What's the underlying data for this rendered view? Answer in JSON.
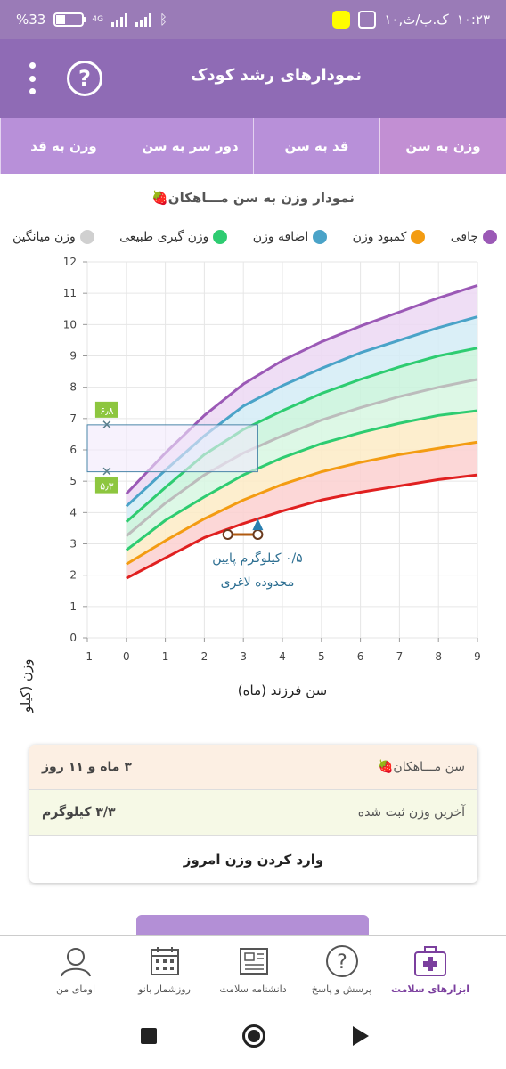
{
  "status_bar": {
    "battery": "%33",
    "network": "4G",
    "date": "۱۰,ک.ب/ث",
    "time": "۱۰:۲۳"
  },
  "app": {
    "title": "نمودارهای رشد کودک",
    "help_label": "?"
  },
  "tabs": [
    {
      "label": "وزن به سن",
      "active": true
    },
    {
      "label": "قد به سن",
      "active": false
    },
    {
      "label": "دور سر به سن",
      "active": false
    },
    {
      "label": "وزن به قد",
      "active": false
    }
  ],
  "chart_data": {
    "type": "area",
    "title": "نمودار وزن به سن مـــاهکان🍓",
    "xlabel": "سن فرزند (ماه)",
    "ylabel": "وزن (کیلوگرم)",
    "xlim": [
      -1,
      9
    ],
    "ylim": [
      0,
      12
    ],
    "x_ticks": [
      "-1",
      "0",
      "1",
      "2",
      "3",
      "4",
      "5",
      "6",
      "7",
      "8",
      "9"
    ],
    "y_ticks": [
      "0",
      "1",
      "2",
      "3",
      "4",
      "5",
      "6",
      "7",
      "8",
      "9",
      "10",
      "11",
      "12"
    ],
    "grid": true,
    "legend_position": "top",
    "x": [
      0,
      1,
      2,
      3,
      4,
      5,
      6,
      7,
      8,
      9
    ],
    "series": [
      {
        "name": "چاقی",
        "color": "#9b59b6",
        "values": [
          4.6,
          5.9,
          7.1,
          8.1,
          8.85,
          9.45,
          9.95,
          10.4,
          10.85,
          11.25
        ]
      },
      {
        "name": "اضافه وزن",
        "color": "#4aa3c8",
        "values": [
          4.2,
          5.35,
          6.45,
          7.4,
          8.05,
          8.6,
          9.1,
          9.5,
          9.9,
          10.25
        ]
      },
      {
        "name": "وزن گیری طبیعی",
        "color": "#2ecc71",
        "values": [
          3.7,
          4.8,
          5.85,
          6.65,
          7.25,
          7.8,
          8.25,
          8.65,
          9.0,
          9.25
        ]
      },
      {
        "name": "وزن میانگین",
        "color": "#bcbcbc",
        "values": [
          3.25,
          4.3,
          5.2,
          5.9,
          6.45,
          6.95,
          7.35,
          7.7,
          8.0,
          8.25
        ]
      },
      {
        "name": "وزن گیری طبیعی پایین",
        "color": "#2ecc71",
        "values": [
          2.8,
          3.75,
          4.5,
          5.2,
          5.75,
          6.2,
          6.55,
          6.85,
          7.1,
          7.25
        ]
      },
      {
        "name": "کمبود وزن",
        "color": "#f39c12",
        "values": [
          2.35,
          3.1,
          3.8,
          4.4,
          4.9,
          5.3,
          5.6,
          5.85,
          6.05,
          6.25
        ]
      },
      {
        "name": "لاغری",
        "color": "#e02020",
        "values": [
          1.9,
          2.55,
          3.2,
          3.65,
          4.05,
          4.4,
          4.65,
          4.85,
          5.05,
          5.2
        ]
      }
    ],
    "legend": [
      {
        "name": "چاقی",
        "color": "#9b59b6"
      },
      {
        "name": "کمبود وزن",
        "color": "#f39c12"
      },
      {
        "name": "اضافه وزن",
        "color": "#4aa3c8"
      },
      {
        "name": "وزن گیری طبیعی",
        "color": "#2ecc71"
      },
      {
        "name": "وزن میانگین",
        "color": "#d0d0d0"
      }
    ],
    "range_box": {
      "x_from": -1,
      "x_to": 3.37,
      "y_from": 5.3,
      "y_to": 6.8,
      "label_upper": "۶٫۸",
      "label_lower": "۵٫۳"
    },
    "measurement": {
      "x_from": 2.6,
      "x_to": 3.37,
      "y": 3.3,
      "arrow_y": 3.55
    },
    "annotation_line1": "۰/۵ کیلوگرم پایین",
    "annotation_line2": "محدوده لاغری"
  },
  "info": {
    "age_label": "سن مـــاهکان🍓",
    "age_value": "۳ ماه و ۱۱ روز",
    "weight_label": "آخرین وزن ثبت شده",
    "weight_value": "۳/۳ کیلوگرم",
    "enter_button": "وارد کردن وزن امروز"
  },
  "bottom_nav": [
    {
      "label": "ابزارهای سلامت",
      "icon": "medical-kit-icon",
      "active": true
    },
    {
      "label": "پرسش و پاسخ",
      "icon": "question-icon",
      "active": false
    },
    {
      "label": "دانشنامه سلامت",
      "icon": "newspaper-icon",
      "active": false
    },
    {
      "label": "روزشمار بانو",
      "icon": "calendar-icon",
      "active": false
    },
    {
      "label": "اومای من",
      "icon": "profile-icon",
      "active": false
    }
  ]
}
